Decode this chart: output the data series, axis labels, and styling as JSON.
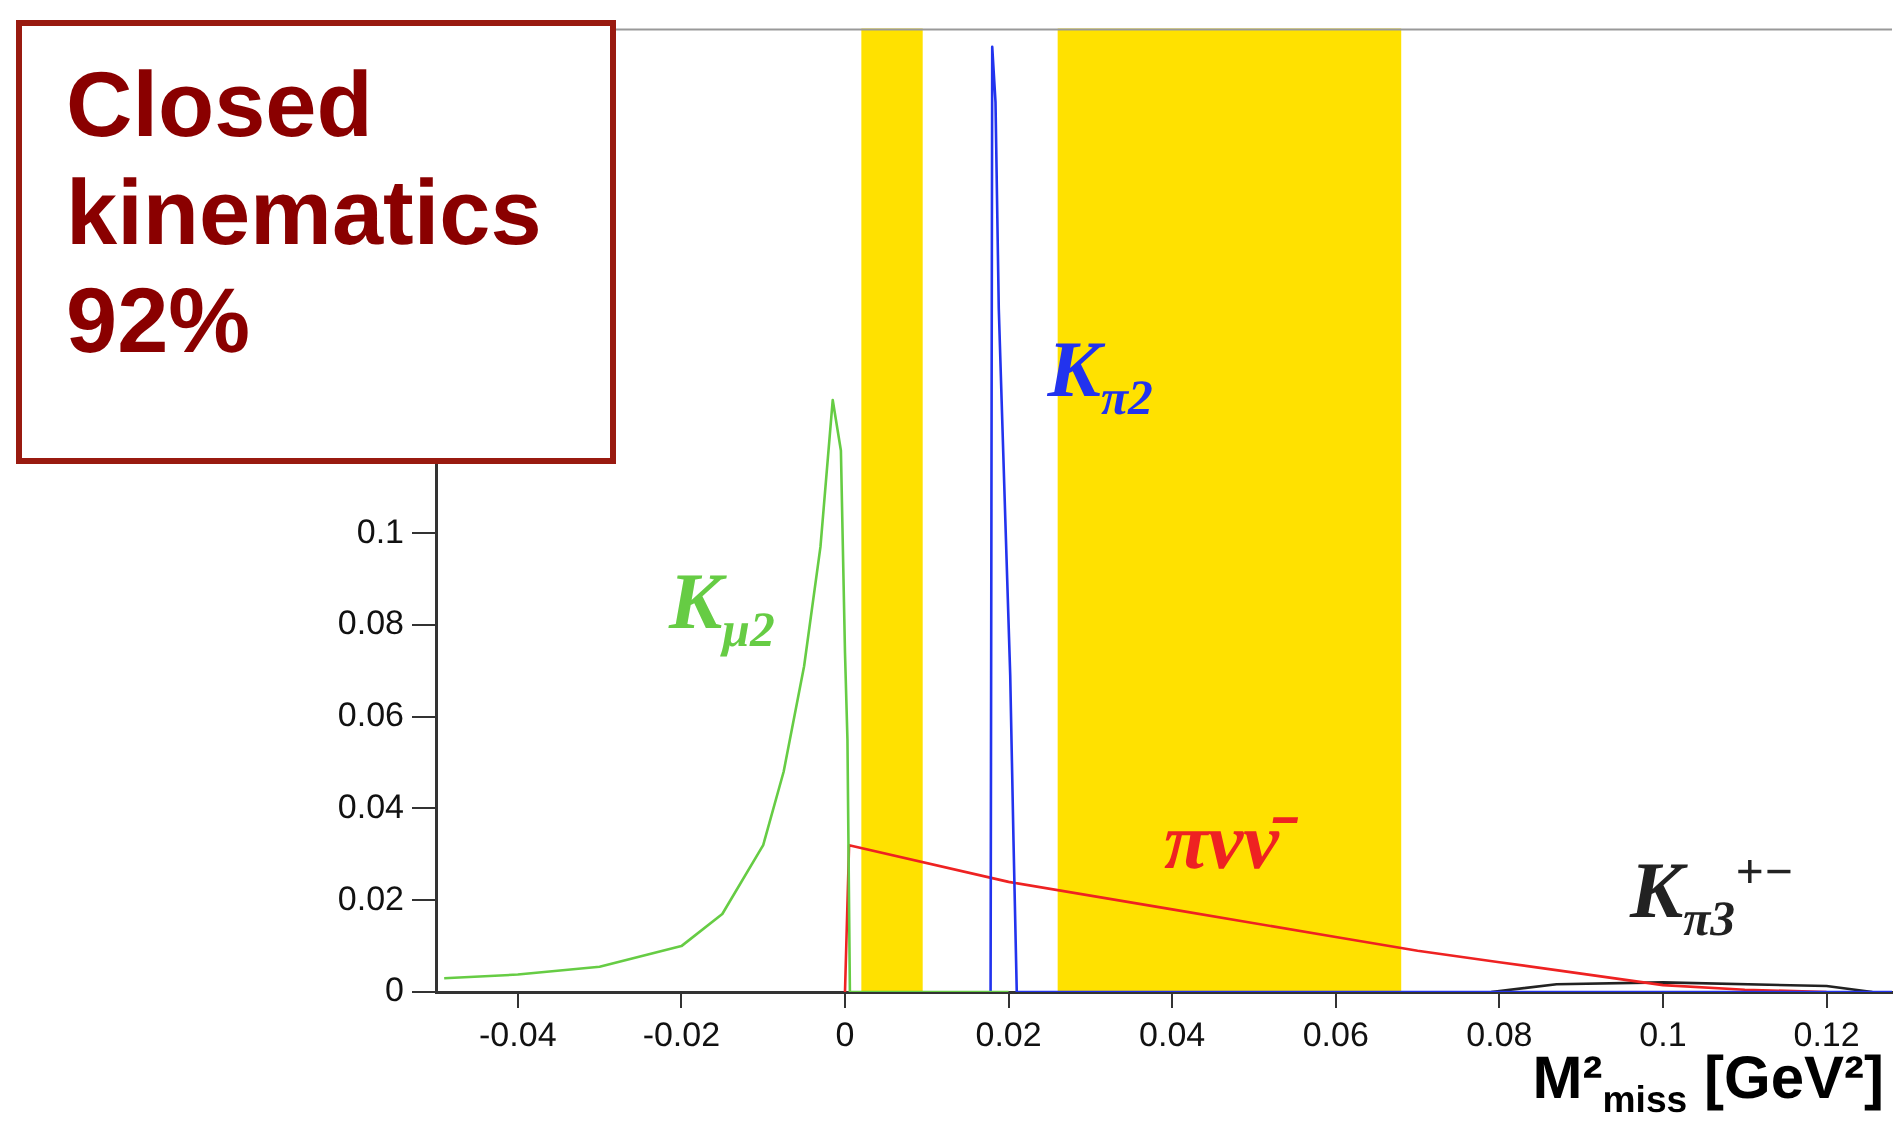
{
  "chart_data": {
    "type": "line",
    "xlabel": "M²$_{miss}$ [GeV²]",
    "xlim": [
      -0.05,
      0.128
    ],
    "xticks": [
      -0.04,
      -0.02,
      0,
      0.02,
      0.04,
      0.06,
      0.08,
      0.1,
      0.12
    ],
    "ylim": [
      0,
      0.21
    ],
    "yticks": [
      0,
      0.02,
      0.04,
      0.06,
      0.08,
      0.1
    ],
    "grid": false,
    "legend": false,
    "marker": "none",
    "line_style": "solid",
    "bands": [
      {
        "axis": "x",
        "from": 0.002,
        "to": 0.0095,
        "color": "#ffe100"
      },
      {
        "axis": "x",
        "from": 0.026,
        "to": 0.068,
        "color": "#ffe100"
      }
    ],
    "annotations": [
      "Closed kinematics 92%"
    ],
    "series": [
      {
        "name": "K$_{μ2}$",
        "color": "#66cc44",
        "x": [
          -0.049,
          -0.04,
          -0.03,
          -0.02,
          -0.015,
          -0.01,
          -0.0075,
          -0.005,
          -0.003,
          -0.0015,
          -0.0005,
          0,
          0.0003,
          0.0006,
          0.02
        ],
        "values": [
          0.003,
          0.0038,
          0.0055,
          0.01,
          0.017,
          0.032,
          0.048,
          0.071,
          0.097,
          0.129,
          0.118,
          0.074,
          0.055,
          0,
          0
        ]
      },
      {
        "name": "K$_{π2}$",
        "color": "#2233ee",
        "x": [
          0.0178,
          0.018,
          0.0184,
          0.0188,
          0.0196,
          0.0202,
          0.0206,
          0.021,
          0.128
        ],
        "values": [
          0,
          0.206,
          0.194,
          0.149,
          0.103,
          0.069,
          0.033,
          0,
          0
        ]
      },
      {
        "name": "πνν̄",
        "color": "#ee2222",
        "x": [
          0,
          0.0005,
          0.02,
          0.04,
          0.06,
          0.07,
          0.08,
          0.09,
          0.1,
          0.11,
          0.12
        ],
        "values": [
          0,
          0.032,
          0.024,
          0.018,
          0.012,
          0.009,
          0.0065,
          0.004,
          0.0015,
          0.0005,
          0
        ]
      },
      {
        "name": "K$_{π3}$$^{+−}$",
        "color": "#222222",
        "x": [
          0.079,
          0.087,
          0.1,
          0.12,
          0.1256
        ],
        "values": [
          0,
          0.0017,
          0.0021,
          0.0013,
          0
        ]
      }
    ]
  }
}
